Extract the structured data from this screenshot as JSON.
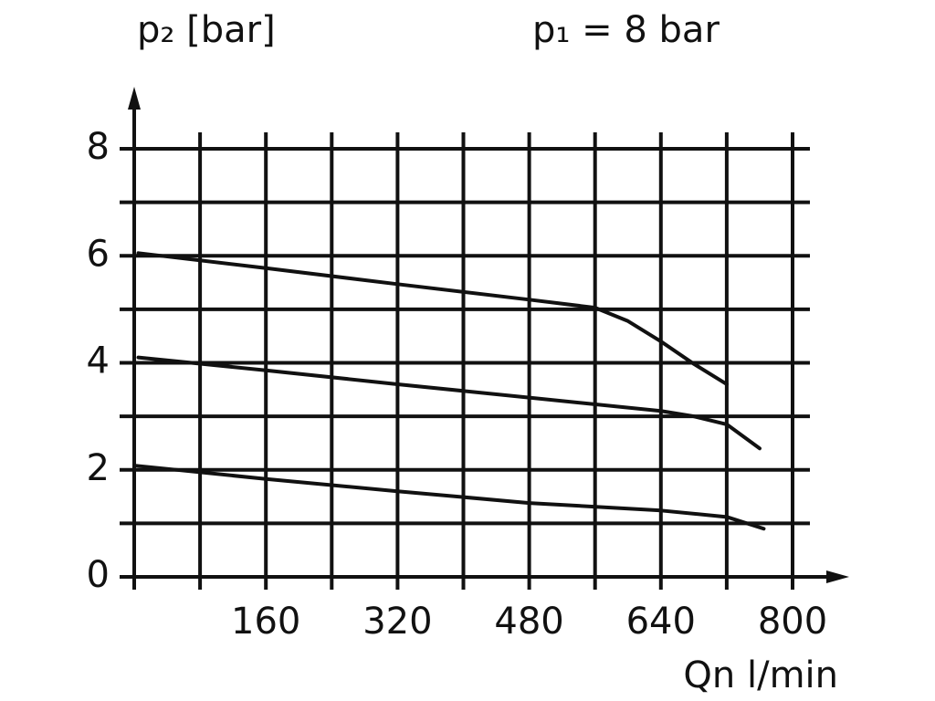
{
  "chart_data": {
    "type": "line",
    "title": "p₁ = 8 bar",
    "ylabel": "p₂ [bar]",
    "xlabel": "Qn l/min",
    "xlim": [
      0,
      800
    ],
    "ylim": [
      0,
      8
    ],
    "xticks": [
      160,
      320,
      480,
      640,
      800
    ],
    "xminorticks": [
      80,
      240,
      400,
      560,
      720
    ],
    "yticks": [
      0,
      2,
      4,
      6,
      8
    ],
    "yminorticks": [
      1,
      3,
      5,
      7
    ],
    "grid": true,
    "series": [
      {
        "color": "#111111",
        "x": [
          5,
          160,
          320,
          480,
          560,
          600,
          640,
          680,
          720
        ],
        "values": [
          6.05,
          5.77,
          5.47,
          5.18,
          5.03,
          4.78,
          4.4,
          3.98,
          3.6
        ]
      },
      {
        "color": "#111111",
        "x": [
          5,
          160,
          320,
          480,
          640,
          680,
          720,
          760
        ],
        "values": [
          4.1,
          3.86,
          3.6,
          3.35,
          3.1,
          3.0,
          2.85,
          2.4
        ]
      },
      {
        "color": "#111111",
        "x": [
          0,
          160,
          320,
          480,
          640,
          720,
          765
        ],
        "values": [
          2.08,
          1.83,
          1.6,
          1.38,
          1.24,
          1.12,
          0.9
        ]
      }
    ]
  }
}
